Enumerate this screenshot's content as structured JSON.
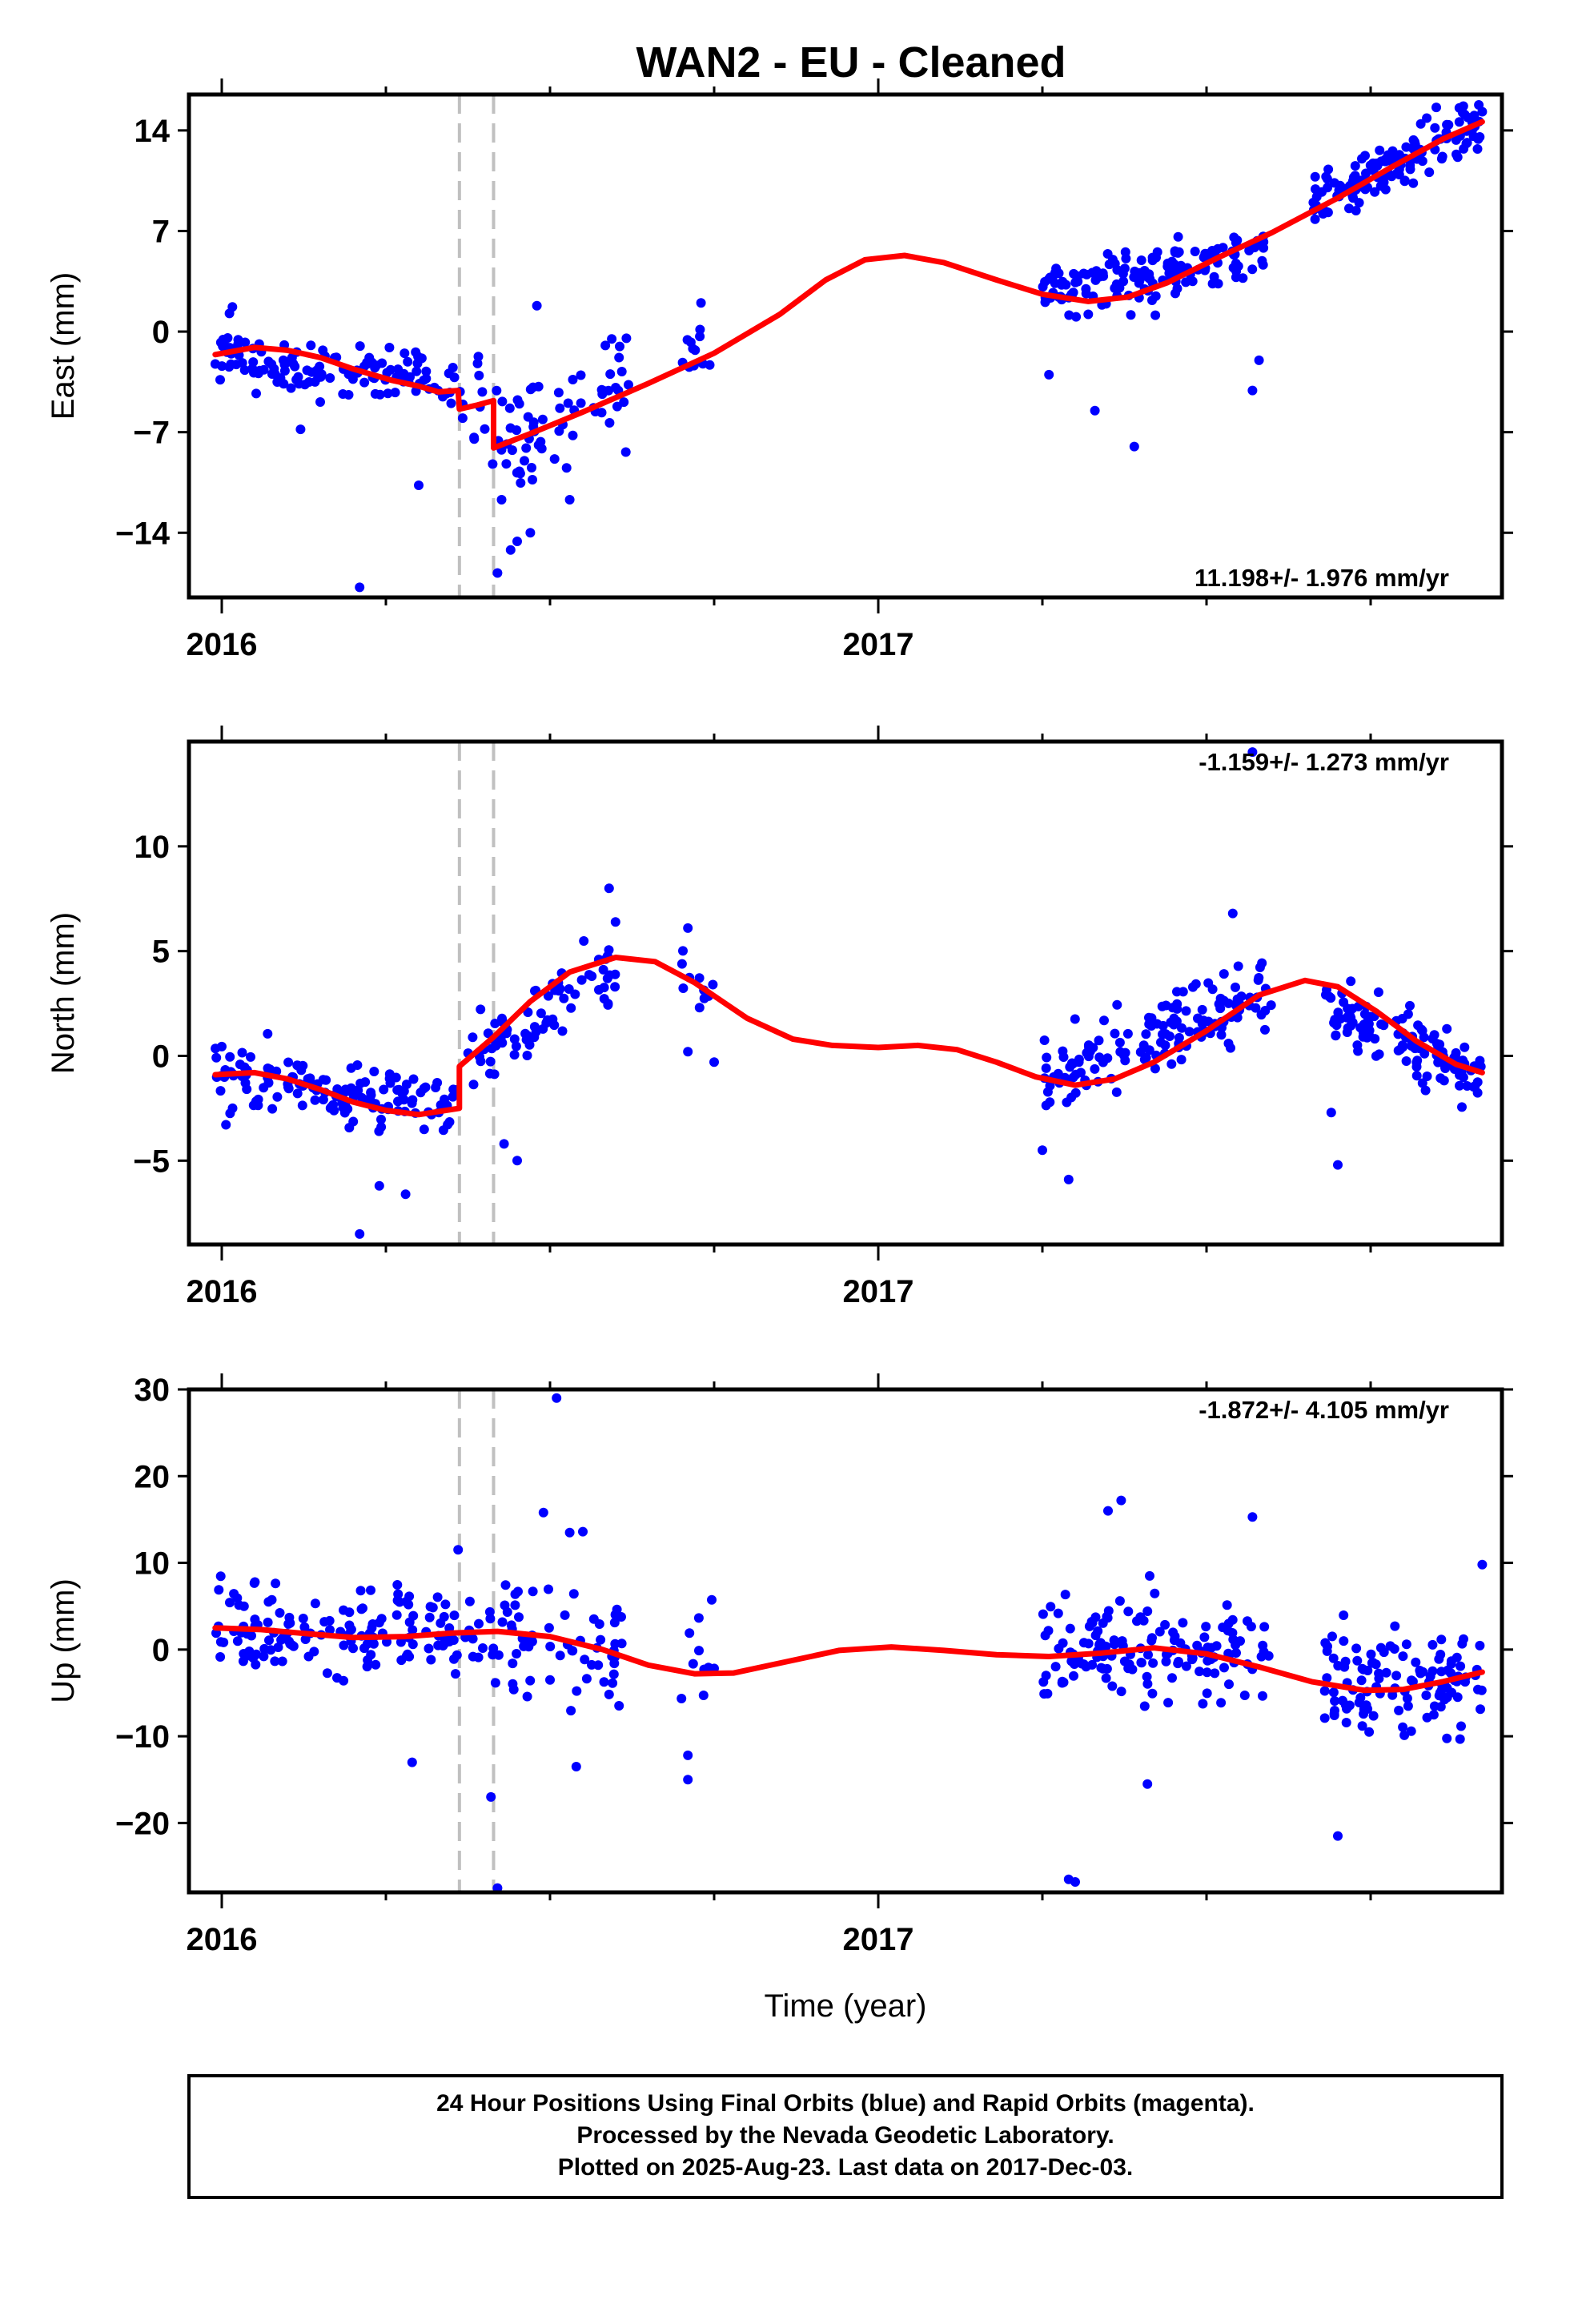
{
  "title": "WAN2  - EU - Cleaned",
  "colors": {
    "final": "#0000ff",
    "model": "#ff0000",
    "events": "#c0c0c0",
    "frame": "#000000"
  },
  "footer": {
    "lines": [
      "24 Hour Positions Using Final Orbits (blue) and Rapid Orbits (magenta).",
      "Processed by the Nevada Geodetic Laboratory.",
      "Plotted on 2025-Aug-23. Last data on 2017-Dec-03."
    ]
  },
  "chart_data": [
    {
      "type": "scatter",
      "ylabel": "East (mm)",
      "xlabel": "",
      "xlim": [
        2015.95,
        2017.95
      ],
      "ylim": [
        -18.5,
        16.5
      ],
      "yticks": [
        -14,
        -7,
        0,
        7,
        14
      ],
      "xticks_labeled": [
        2016,
        2017
      ],
      "xticks_minor": [
        2016.25,
        2016.5,
        2016.75,
        2017.25,
        2017.5,
        2017.75
      ],
      "event_lines": [
        2016.362,
        2016.414
      ],
      "rate_text": "11.198+/- 1.976 mm/yr",
      "rate_position": "bottom-right",
      "series": [
        {
          "name": "Final Orbits",
          "kind": "points",
          "segments": [
            {
              "t": [
                2015.99,
                2016.37
              ],
              "a": -1.6,
              "b": -4.3,
              "amp": 0.3,
              "per": 1,
              "ph": 0.2,
              "noise": 1.6,
              "n": 140,
              "seed": 11
            },
            {
              "t": [
                2016.38,
                2016.42
              ],
              "a": -5.0,
              "b": -5.5,
              "amp": 0,
              "per": 1,
              "ph": 0,
              "noise": 3.5,
              "n": 10,
              "seed": 12
            },
            {
              "t": [
                2016.42,
                2016.62
              ],
              "a": -8.0,
              "b": -4.0,
              "amp": 0,
              "per": 1,
              "ph": 0,
              "noise": 3.0,
              "n": 65,
              "seed": 13
            },
            {
              "t": [
                2016.7,
                2016.75
              ],
              "a": -1.5,
              "b": -1.0,
              "amp": 0,
              "per": 1,
              "ph": 0,
              "noise": 2.0,
              "n": 12,
              "seed": 14
            },
            {
              "t": [
                2017.25,
                2017.59
              ],
              "a": 2.8,
              "b": 5.5,
              "amp": 0,
              "per": 1,
              "ph": 0,
              "noise": 1.6,
              "n": 150,
              "seed": 15
            },
            {
              "t": [
                2017.66,
                2017.92
              ],
              "a": 9.0,
              "b": 14.6,
              "amp": 0,
              "per": 1,
              "ph": 0,
              "noise": 1.6,
              "n": 130,
              "seed": 16
            }
          ],
          "points": [
            [
              2016.21,
              -17.8
            ],
            [
              2016.42,
              -16.8
            ],
            [
              2016.44,
              -15.2
            ],
            [
              2016.45,
              -14.6
            ],
            [
              2016.47,
              -14.0
            ],
            [
              2016.3,
              -10.7
            ],
            [
              2016.53,
              -11.7
            ],
            [
              2016.48,
              1.8
            ],
            [
              2016.73,
              2.0
            ],
            [
              2017.39,
              -8.0
            ],
            [
              2017.33,
              -5.5
            ],
            [
              2017.26,
              -3.0
            ],
            [
              2017.57,
              -4.1
            ],
            [
              2017.58,
              -2.0
            ],
            [
              2017.85,
              15.6
            ],
            [
              2017.92,
              15.3
            ],
            [
              2016.12,
              -6.8
            ]
          ]
        },
        {
          "name": "Model",
          "kind": "line",
          "polyline": [
            [
              2015.99,
              -1.6
            ],
            [
              2016.05,
              -1.1
            ],
            [
              2016.1,
              -1.3
            ],
            [
              2016.15,
              -1.8
            ],
            [
              2016.2,
              -2.6
            ],
            [
              2016.26,
              -3.4
            ],
            [
              2016.3,
              -3.8
            ],
            [
              2016.33,
              -4.2
            ],
            [
              2016.36,
              -4.1
            ],
            [
              2016.362,
              -5.4
            ],
            [
              2016.39,
              -5.1
            ],
            [
              2016.414,
              -4.8
            ],
            [
              2016.414,
              -8.1
            ],
            [
              2016.47,
              -7.1
            ],
            [
              2016.55,
              -5.6
            ],
            [
              2016.65,
              -3.6
            ],
            [
              2016.75,
              -1.5
            ],
            [
              2016.85,
              1.2
            ],
            [
              2016.92,
              3.6
            ],
            [
              2016.98,
              5.0
            ],
            [
              2017.04,
              5.3
            ],
            [
              2017.1,
              4.8
            ],
            [
              2017.18,
              3.6
            ],
            [
              2017.25,
              2.6
            ],
            [
              2017.32,
              2.1
            ],
            [
              2017.38,
              2.4
            ],
            [
              2017.44,
              3.4
            ],
            [
              2017.52,
              5.2
            ],
            [
              2017.6,
              6.9
            ],
            [
              2017.7,
              9.3
            ],
            [
              2017.78,
              11.4
            ],
            [
              2017.86,
              13.4
            ],
            [
              2017.92,
              14.6
            ]
          ]
        }
      ]
    },
    {
      "type": "scatter",
      "ylabel": "North (mm)",
      "xlabel": "",
      "xlim": [
        2015.95,
        2017.95
      ],
      "ylim": [
        -9,
        15
      ],
      "yticks": [
        -5,
        0,
        5,
        10
      ],
      "xticks_labeled": [
        2016,
        2017
      ],
      "xticks_minor": [
        2016.25,
        2016.5,
        2016.75,
        2017.25,
        2017.5,
        2017.75
      ],
      "event_lines": [
        2016.362,
        2016.414
      ],
      "rate_text": "-1.159+/- 1.273 mm/yr",
      "rate_position": "top-right",
      "series": [
        {
          "name": "Final Orbits",
          "kind": "points",
          "segments": [
            {
              "t": [
                2015.99,
                2016.36
              ],
              "a": -0.8,
              "b": -2.6,
              "amp": 0,
              "per": 1,
              "ph": 0,
              "noise": 1.3,
              "n": 140,
              "seed": 21
            },
            {
              "t": [
                2016.37,
                2016.42
              ],
              "a": -0.6,
              "b": 0.8,
              "amp": 0,
              "per": 1,
              "ph": 0,
              "noise": 1.6,
              "n": 15,
              "seed": 22
            },
            {
              "t": [
                2016.42,
                2016.6
              ],
              "a": 1.0,
              "b": 4.5,
              "amp": 0,
              "per": 1,
              "ph": 0,
              "noise": 1.4,
              "n": 60,
              "seed": 23
            },
            {
              "t": [
                2016.7,
                2016.75
              ],
              "a": 4.0,
              "b": 3.0,
              "amp": 0,
              "per": 1,
              "ph": 0,
              "noise": 1.5,
              "n": 10,
              "seed": 24
            },
            {
              "t": [
                2017.25,
                2017.6
              ],
              "a": -1.2,
              "b": 3.2,
              "amp": 0,
              "per": 1,
              "ph": 0,
              "noise": 1.4,
              "n": 150,
              "seed": 25
            },
            {
              "t": [
                2017.68,
                2017.92
              ],
              "a": 2.5,
              "b": -1.0,
              "amp": 0,
              "per": 1,
              "ph": 0,
              "noise": 1.3,
              "n": 120,
              "seed": 26
            }
          ],
          "points": [
            [
              2016.21,
              -8.5
            ],
            [
              2016.28,
              -6.6
            ],
            [
              2016.24,
              -6.2
            ],
            [
              2016.43,
              -4.2
            ],
            [
              2016.45,
              -5.0
            ],
            [
              2016.59,
              8.0
            ],
            [
              2017.29,
              -5.9
            ],
            [
              2017.25,
              -4.5
            ],
            [
              2017.7,
              -5.2
            ],
            [
              2017.69,
              -2.7
            ],
            [
              2017.57,
              14.5
            ],
            [
              2016.71,
              6.1
            ],
            [
              2016.75,
              -0.3
            ],
            [
              2016.71,
              0.2
            ],
            [
              2017.54,
              6.8
            ]
          ]
        },
        {
          "name": "Model",
          "kind": "line",
          "polyline": [
            [
              2015.99,
              -0.9
            ],
            [
              2016.05,
              -0.8
            ],
            [
              2016.1,
              -1.1
            ],
            [
              2016.15,
              -1.6
            ],
            [
              2016.2,
              -2.2
            ],
            [
              2016.25,
              -2.6
            ],
            [
              2016.3,
              -2.8
            ],
            [
              2016.362,
              -2.5
            ],
            [
              2016.362,
              -0.5
            ],
            [
              2016.414,
              0.9
            ],
            [
              2016.47,
              2.6
            ],
            [
              2016.53,
              4.0
            ],
            [
              2016.6,
              4.7
            ],
            [
              2016.66,
              4.5
            ],
            [
              2016.72,
              3.5
            ],
            [
              2016.8,
              1.8
            ],
            [
              2016.87,
              0.8
            ],
            [
              2016.93,
              0.5
            ],
            [
              2017.0,
              0.4
            ],
            [
              2017.06,
              0.5
            ],
            [
              2017.12,
              0.3
            ],
            [
              2017.18,
              -0.3
            ],
            [
              2017.24,
              -1.0
            ],
            [
              2017.3,
              -1.4
            ],
            [
              2017.36,
              -1.1
            ],
            [
              2017.42,
              -0.3
            ],
            [
              2017.5,
              1.2
            ],
            [
              2017.58,
              2.9
            ],
            [
              2017.65,
              3.6
            ],
            [
              2017.7,
              3.3
            ],
            [
              2017.76,
              2.1
            ],
            [
              2017.82,
              0.7
            ],
            [
              2017.88,
              -0.4
            ],
            [
              2017.92,
              -0.8
            ]
          ]
        }
      ]
    },
    {
      "type": "scatter",
      "ylabel": "Up (mm)",
      "xlabel": "Time (year)",
      "xlim": [
        2015.95,
        2017.95
      ],
      "ylim": [
        -28,
        30
      ],
      "yticks": [
        -20,
        -10,
        0,
        10,
        20,
        30
      ],
      "xticks_labeled": [
        2016,
        2017
      ],
      "xticks_minor": [
        2016.25,
        2016.5,
        2016.75,
        2017.25,
        2017.5,
        2017.75
      ],
      "event_lines": [
        2016.362,
        2016.414
      ],
      "rate_text": "-1.872+/- 4.105 mm/yr",
      "rate_position": "top-right",
      "series": [
        {
          "name": "Final Orbits",
          "kind": "points",
          "segments": [
            {
              "t": [
                1015.99,
                1016.0
              ],
              "a": 0,
              "b": 0,
              "amp": 0,
              "per": 1,
              "ph": 0,
              "noise": 0,
              "n": 0,
              "seed": 30
            },
            {
              "t": [
                2015.99,
                2016.36
              ],
              "a": 2.5,
              "b": 1.8,
              "amp": 0,
              "per": 1,
              "ph": 0,
              "noise": 4.2,
              "n": 140,
              "seed": 31
            },
            {
              "t": [
                2016.37,
                2016.42
              ],
              "a": 2.0,
              "b": 2.0,
              "amp": 0,
              "per": 1,
              "ph": 0,
              "noise": 5.5,
              "n": 14,
              "seed": 32
            },
            {
              "t": [
                2016.42,
                2016.62
              ],
              "a": 1.5,
              "b": -0.5,
              "amp": 0,
              "per": 1,
              "ph": 0,
              "noise": 5.5,
              "n": 60,
              "seed": 33
            },
            {
              "t": [
                2016.7,
                2016.75
              ],
              "a": -2.0,
              "b": -3.0,
              "amp": 0,
              "per": 1,
              "ph": 0,
              "noise": 6.0,
              "n": 10,
              "seed": 34
            },
            {
              "t": [
                2017.25,
                2017.6
              ],
              "a": 0.0,
              "b": -1.0,
              "amp": 0,
              "per": 1,
              "ph": 0,
              "noise": 5.5,
              "n": 150,
              "seed": 35
            },
            {
              "t": [
                2017.68,
                2017.92
              ],
              "a": -4.0,
              "b": -3.0,
              "amp": 0,
              "per": 1,
              "ph": 0,
              "noise": 4.8,
              "n": 120,
              "seed": 36
            }
          ],
          "points": [
            [
              2016.51,
              29.0
            ],
            [
              2016.42,
              -27.5
            ],
            [
              2017.29,
              -26.5
            ],
            [
              2017.3,
              -26.8
            ],
            [
              2016.41,
              -17.0
            ],
            [
              2016.71,
              -15.0
            ],
            [
              2016.71,
              -12.2
            ],
            [
              2017.7,
              -21.5
            ],
            [
              2017.37,
              17.2
            ],
            [
              2017.35,
              16.0
            ],
            [
              2017.57,
              15.3
            ],
            [
              2016.49,
              15.8
            ],
            [
              2016.53,
              13.5
            ],
            [
              2016.55,
              13.6
            ],
            [
              2016.36,
              11.5
            ],
            [
              2017.92,
              9.8
            ],
            [
              2016.29,
              -13.0
            ],
            [
              2016.54,
              -13.5
            ],
            [
              2017.41,
              -15.5
            ]
          ]
        },
        {
          "name": "Model",
          "kind": "line",
          "polyline": [
            [
              2015.99,
              2.5
            ],
            [
              2016.06,
              2.3
            ],
            [
              2016.12,
              1.9
            ],
            [
              2016.2,
              1.4
            ],
            [
              2016.28,
              1.5
            ],
            [
              2016.35,
              1.9
            ],
            [
              2016.42,
              2.1
            ],
            [
              2016.5,
              1.5
            ],
            [
              2016.58,
              0.0
            ],
            [
              2016.65,
              -1.8
            ],
            [
              2016.72,
              -2.8
            ],
            [
              2016.78,
              -2.7
            ],
            [
              2016.86,
              -1.4
            ],
            [
              2016.94,
              -0.1
            ],
            [
              2017.02,
              0.3
            ],
            [
              2017.1,
              -0.1
            ],
            [
              2017.18,
              -0.6
            ],
            [
              2017.26,
              -0.8
            ],
            [
              2017.34,
              -0.4
            ],
            [
              2017.42,
              0.2
            ],
            [
              2017.5,
              -0.5
            ],
            [
              2017.58,
              -2.0
            ],
            [
              2017.66,
              -3.7
            ],
            [
              2017.74,
              -4.7
            ],
            [
              2017.8,
              -4.6
            ],
            [
              2017.86,
              -3.7
            ],
            [
              2017.92,
              -2.6
            ]
          ]
        }
      ]
    }
  ]
}
